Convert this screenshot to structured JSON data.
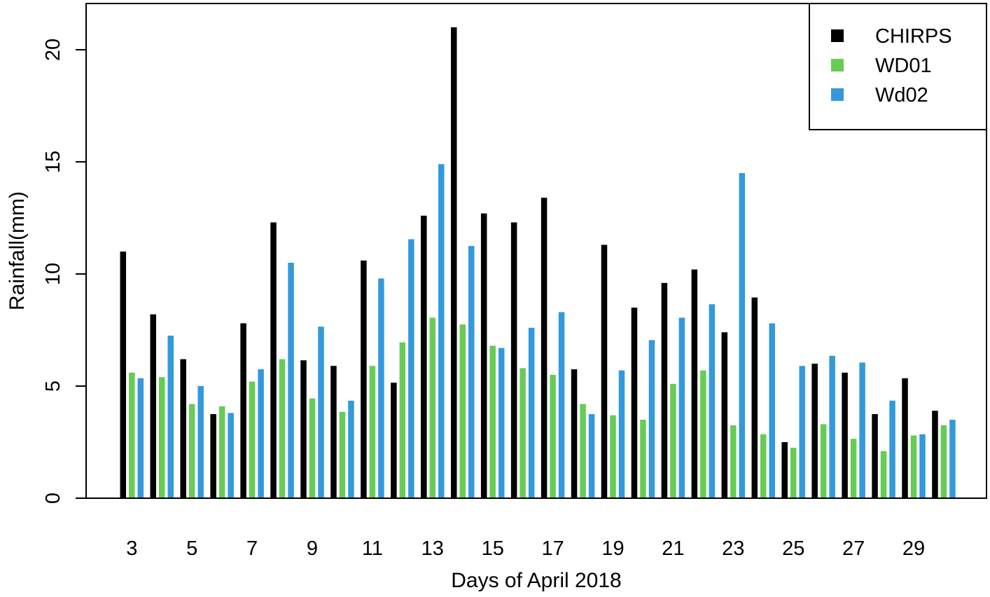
{
  "chart_data": {
    "type": "bar",
    "xlabel": "Days of April 2018",
    "ylabel": "Rainfall(mm)",
    "ylim": [
      0,
      21
    ],
    "yticks": [
      0,
      5,
      10,
      15,
      20
    ],
    "grid": false,
    "legend_position": "top-right",
    "categories": [
      "3",
      "4",
      "5",
      "6",
      "7",
      "8",
      "9",
      "10",
      "11",
      "12",
      "13",
      "14",
      "15",
      "16",
      "17",
      "18",
      "19",
      "20",
      "21",
      "22",
      "23",
      "24",
      "25",
      "26",
      "27",
      "28",
      "29",
      "30"
    ],
    "xtick_labels": [
      "3",
      "5",
      "7",
      "9",
      "11",
      "13",
      "15",
      "17",
      "19",
      "21",
      "23",
      "25",
      "27",
      "29"
    ],
    "series": [
      {
        "name": "CHIRPS",
        "color": "#000000",
        "values": [
          11.0,
          8.2,
          6.2,
          3.75,
          7.8,
          12.3,
          6.15,
          5.9,
          10.6,
          5.15,
          12.6,
          21.0,
          12.7,
          12.3,
          13.4,
          5.75,
          11.3,
          8.5,
          9.6,
          10.2,
          7.4,
          8.95,
          2.5,
          6.0,
          5.6,
          3.75,
          5.35,
          3.9
        ]
      },
      {
        "name": "WD01",
        "color": "#66cc55",
        "values": [
          5.6,
          5.4,
          4.2,
          4.1,
          5.2,
          6.2,
          4.45,
          3.85,
          5.9,
          6.95,
          8.05,
          7.75,
          6.8,
          5.8,
          5.5,
          4.2,
          3.7,
          3.5,
          5.1,
          5.7,
          3.25,
          2.85,
          2.25,
          3.3,
          2.65,
          2.1,
          2.8,
          3.25
        ]
      },
      {
        "name": "Wd02",
        "color": "#3399dd",
        "values": [
          5.35,
          7.25,
          5.0,
          3.8,
          5.75,
          10.5,
          7.65,
          4.35,
          9.8,
          11.55,
          14.9,
          11.25,
          6.7,
          7.6,
          8.3,
          3.75,
          5.7,
          7.05,
          8.05,
          8.65,
          14.5,
          7.8,
          5.9,
          6.35,
          6.05,
          4.35,
          2.85,
          3.5
        ]
      }
    ]
  }
}
